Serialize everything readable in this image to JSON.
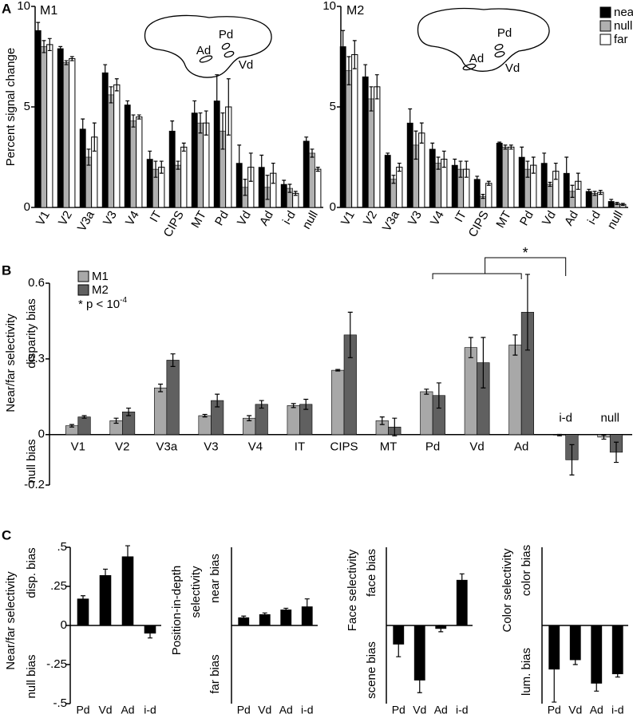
{
  "chart_data": [
    {
      "type": "bar",
      "panel_label": "A",
      "title": "M1",
      "ylabel": [
        "Percent signal change"
      ],
      "brain_labels": [
        "Pd",
        "Ad",
        "Vd"
      ],
      "categories": [
        "V1",
        "V2",
        "V3a",
        "V3",
        "V4",
        "IT",
        "CIPS",
        "MT",
        "Pd",
        "Vd",
        "Ad",
        "i-d",
        "null"
      ],
      "series": [
        {
          "color": "#000000",
          "values": [
            8.8,
            7.9,
            3.9,
            6.7,
            5.1,
            2.4,
            3.8,
            4.7,
            5.3,
            2.2,
            2.0,
            1.15,
            3.3
          ],
          "errors": [
            0.4,
            0.1,
            0.5,
            0.4,
            0.2,
            0.4,
            0.5,
            0.6,
            1.3,
            0.9,
            0.6,
            0.2,
            0.2
          ]
        },
        {
          "color": "#b0b0b0",
          "values": [
            8.0,
            7.2,
            2.5,
            5.6,
            4.3,
            1.9,
            2.1,
            4.2,
            3.8,
            1.0,
            1.0,
            0.95,
            2.7
          ],
          "errors": [
            0.3,
            0.1,
            0.4,
            0.4,
            0.3,
            0.4,
            0.2,
            0.5,
            0.9,
            0.4,
            0.6,
            0.2,
            0.2
          ]
        },
        {
          "color": "#ffffff",
          "values": [
            8.1,
            7.4,
            3.5,
            6.1,
            4.5,
            2.0,
            3.0,
            4.2,
            5.0,
            2.0,
            1.7,
            0.7,
            1.9
          ],
          "errors": [
            0.3,
            0.1,
            0.7,
            0.3,
            0.1,
            0.3,
            0.2,
            0.6,
            1.4,
            0.7,
            0.5,
            0.1,
            0.1
          ]
        }
      ],
      "ylim": [
        0,
        10
      ],
      "yticks": [
        0,
        5,
        10
      ]
    },
    {
      "type": "bar",
      "title": "M2",
      "brain_labels": [
        "Pd",
        "Ad",
        "Vd"
      ],
      "legend": "upper right",
      "categories": [
        "V1",
        "V2",
        "V3a",
        "V3",
        "V4",
        "IT",
        "CIPS",
        "MT",
        "Pd",
        "Vd",
        "Ad",
        "i-d",
        "null"
      ],
      "series": [
        {
          "name": "near",
          "color": "#000000",
          "values": [
            8.0,
            6.5,
            2.6,
            4.2,
            2.9,
            2.1,
            1.4,
            3.2,
            2.5,
            2.2,
            1.7,
            0.8,
            0.3
          ],
          "errors": [
            0.8,
            0.6,
            0.1,
            0.7,
            0.3,
            0.3,
            0.15,
            0.05,
            0.5,
            0.5,
            0.8,
            0.1,
            0.1
          ]
        },
        {
          "name": "null",
          "color": "#b0b0b0",
          "values": [
            6.8,
            5.4,
            1.4,
            3.1,
            2.2,
            1.9,
            0.55,
            3.0,
            1.9,
            1.15,
            0.8,
            0.7,
            0.2
          ],
          "errors": [
            0.7,
            0.6,
            0.2,
            0.7,
            0.3,
            0.4,
            0.1,
            0.1,
            0.4,
            0.1,
            0.3,
            0.1,
            0.05
          ]
        },
        {
          "name": "far",
          "color": "#ffffff",
          "values": [
            7.6,
            6.0,
            2.0,
            3.7,
            2.4,
            1.9,
            1.2,
            3.0,
            2.1,
            1.8,
            1.3,
            0.75,
            0.15
          ],
          "errors": [
            0.7,
            0.6,
            0.2,
            0.5,
            0.4,
            0.4,
            0.1,
            0.1,
            0.4,
            0.4,
            0.4,
            0.1,
            0.05
          ]
        }
      ],
      "ylim": [
        0,
        10
      ],
      "yticks": [
        0,
        5,
        10
      ]
    },
    {
      "type": "bar",
      "panel_label": "B",
      "ylabel": [
        "Near/far selectivity"
      ],
      "ylabel_top": "disparity bias",
      "ylabel_bottom": "null bias",
      "legend": "upper left",
      "legend_note": "* p < 10",
      "legend_note_superscript": "-4",
      "significance_label": "*",
      "categories": [
        "V1",
        "V2",
        "V3a",
        "V3",
        "V4",
        "IT",
        "CIPS",
        "MT",
        "Pd",
        "Vd",
        "Ad",
        "i-d",
        "null"
      ],
      "series": [
        {
          "name": "M1",
          "color": "#a8a8a8",
          "values": [
            0.035,
            0.055,
            0.185,
            0.075,
            0.065,
            0.115,
            0.255,
            0.055,
            0.17,
            0.345,
            0.355,
            -0.002,
            -0.01
          ],
          "errors": [
            0.005,
            0.01,
            0.015,
            0.005,
            0.01,
            0.008,
            0.003,
            0.015,
            0.01,
            0.04,
            0.04,
            0.003,
            0.008
          ]
        },
        {
          "name": "M2",
          "color": "#606060",
          "values": [
            0.07,
            0.09,
            0.295,
            0.135,
            0.12,
            0.12,
            0.395,
            0.03,
            0.155,
            0.285,
            0.485,
            -0.1,
            -0.07
          ],
          "errors": [
            0.005,
            0.015,
            0.025,
            0.025,
            0.015,
            0.02,
            0.09,
            0.035,
            0.05,
            0.1,
            0.15,
            0.06,
            0.04
          ]
        }
      ],
      "ylim": [
        -0.2,
        0.6
      ],
      "yticks": [
        -0.2,
        0,
        0.3,
        0.6
      ]
    },
    {
      "type": "bar",
      "panel_label": "C",
      "ylabel": [
        "Near/far selectivity"
      ],
      "ylabel_top": "disp. bias",
      "ylabel_bottom": "null bias",
      "categories": [
        "Pd",
        "Vd",
        "Ad",
        "i-d"
      ],
      "series": [
        {
          "color": "#000000",
          "values": [
            0.17,
            0.32,
            0.44,
            -0.05
          ],
          "errors": [
            0.02,
            0.04,
            0.07,
            0.03
          ]
        }
      ],
      "ylim": [
        -0.5,
        0.5
      ],
      "yticks": [
        {
          "value": -0.5,
          "label": "-.5"
        },
        {
          "value": -0.25,
          "label": "-.25"
        },
        0,
        {
          "value": 0.25,
          "label": ".25"
        },
        {
          "value": 0.5,
          "label": ".5"
        }
      ]
    },
    {
      "type": "bar",
      "ylabel": [
        "Position-in-depth",
        "selectivity"
      ],
      "ylabel_top": "near bias",
      "ylabel_bottom": "far bias",
      "categories": [
        "Pd",
        "Vd",
        "Ad",
        "i-d"
      ],
      "series": [
        {
          "color": "#000000",
          "values": [
            0.05,
            0.07,
            0.1,
            0.12
          ],
          "errors": [
            0.01,
            0.01,
            0.01,
            0.05
          ]
        }
      ],
      "ylim": [
        -0.5,
        0.5
      ]
    },
    {
      "type": "bar",
      "ylabel": [
        "Face selectivity"
      ],
      "ylabel_top": "face bias",
      "ylabel_bottom": "scene bias",
      "categories": [
        "Pd",
        "Vd",
        "Ad",
        "i-d"
      ],
      "series": [
        {
          "color": "#000000",
          "values": [
            -0.12,
            -0.35,
            -0.02,
            0.29
          ],
          "errors": [
            0.08,
            0.08,
            0.02,
            0.04
          ]
        }
      ],
      "ylim": [
        -0.5,
        0.5
      ]
    },
    {
      "type": "bar",
      "ylabel": [
        "Color selectivity"
      ],
      "ylabel_top": "color bias",
      "ylabel_bottom": "lum. bias",
      "categories": [
        "Pd",
        "Vd",
        "Ad",
        "i-d"
      ],
      "series": [
        {
          "color": "#000000",
          "values": [
            -0.28,
            -0.22,
            -0.37,
            -0.31
          ],
          "errors": [
            0.21,
            0.03,
            0.05,
            0.02
          ]
        }
      ],
      "ylim": [
        -0.5,
        0.5
      ]
    }
  ]
}
